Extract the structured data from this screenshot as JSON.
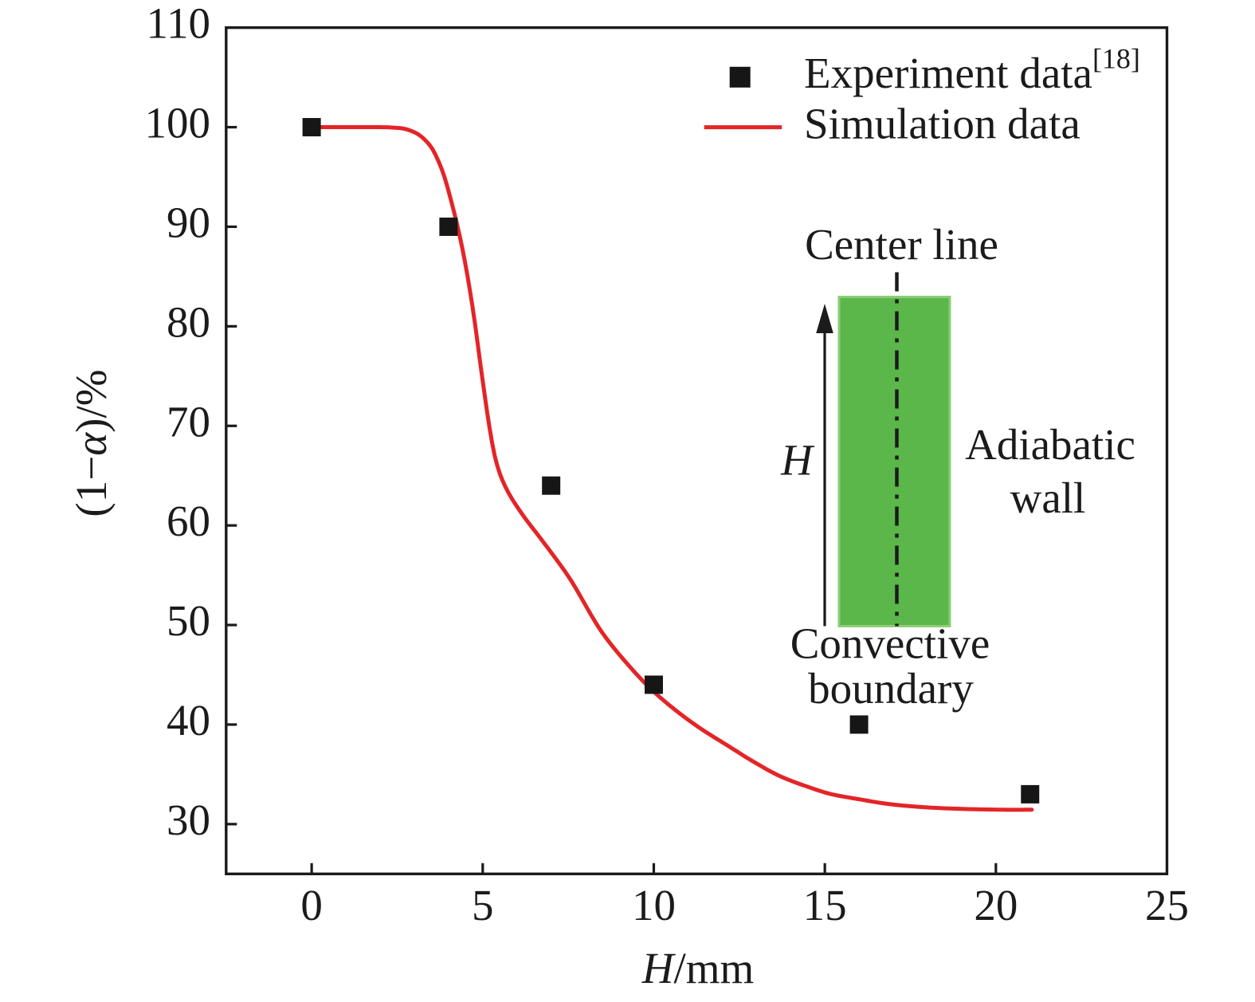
{
  "figure": {
    "background": "#ffffff"
  },
  "chart_data": {
    "type": "line+scatter",
    "title": "",
    "xlabel_parts": {
      "symbol": "H",
      "unit": "/mm"
    },
    "ylabel_parts": {
      "pre": "(1−",
      "symbol": "α",
      "post": ")/%"
    },
    "xlim": [
      -2.5,
      25
    ],
    "ylim": [
      25,
      110
    ],
    "xticks": [
      0,
      5,
      10,
      15,
      20,
      25
    ],
    "yticks": [
      30,
      40,
      50,
      60,
      70,
      80,
      90,
      100,
      110
    ],
    "grid": false,
    "legend": {
      "position": "top-right-inside",
      "entries": [
        {
          "name": "Experiment data",
          "sup": "[18]",
          "type": "scatter",
          "marker": "square",
          "color": "#161616"
        },
        {
          "name": "Simulation data",
          "sup": "",
          "type": "line",
          "color": "#e32528"
        }
      ]
    },
    "series": [
      {
        "name": "Experiment data",
        "type": "scatter",
        "marker": "square",
        "color": "#161616",
        "points": [
          [
            0,
            100
          ],
          [
            4,
            90
          ],
          [
            7,
            64
          ],
          [
            10,
            44
          ],
          [
            16,
            40
          ],
          [
            21,
            33
          ]
        ]
      },
      {
        "name": "Simulation data",
        "type": "line",
        "color": "#e32528",
        "points": [
          [
            0,
            100
          ],
          [
            1,
            100
          ],
          [
            2,
            100
          ],
          [
            2.6,
            99.9
          ],
          [
            3.0,
            99.5
          ],
          [
            3.45,
            98.2
          ],
          [
            3.8,
            95.8
          ],
          [
            4.1,
            92.3
          ],
          [
            4.4,
            87.9
          ],
          [
            4.7,
            82.0
          ],
          [
            5.0,
            74.5
          ],
          [
            5.2,
            69.8
          ],
          [
            5.35,
            67.0
          ],
          [
            5.5,
            65.2
          ],
          [
            5.75,
            63.3
          ],
          [
            6.1,
            61.4
          ],
          [
            6.8,
            58.2
          ],
          [
            7.5,
            54.9
          ],
          [
            8.5,
            49.2
          ],
          [
            9.2,
            46.2
          ],
          [
            10,
            43.3
          ],
          [
            11.2,
            40.0
          ],
          [
            12.2,
            37.8
          ],
          [
            13,
            36.1
          ],
          [
            13.7,
            34.8
          ],
          [
            14.5,
            33.75
          ],
          [
            15.2,
            33.0
          ],
          [
            16,
            32.5
          ],
          [
            16.8,
            32.05
          ],
          [
            17.5,
            31.8
          ],
          [
            18.3,
            31.62
          ],
          [
            19.1,
            31.52
          ],
          [
            19.9,
            31.46
          ],
          [
            20.5,
            31.44
          ],
          [
            21.05,
            31.45
          ]
        ]
      }
    ]
  },
  "inset": {
    "labels": {
      "center_line": "Center line",
      "height_symbol": "H",
      "adiabatic_line1": "Adiabatic",
      "adiabatic_line2": "wall",
      "convective_line1": "Convective",
      "convective_line2": "boundary"
    },
    "colors": {
      "sample_fill": "#5bb74a",
      "sample_edge": "#8ccd77",
      "annotation": "#1b1b1b"
    }
  },
  "colors": {
    "axis": "#1a1a1a",
    "text": "#1b1b1b",
    "experiment": "#161616",
    "simulation": "#e32528"
  }
}
